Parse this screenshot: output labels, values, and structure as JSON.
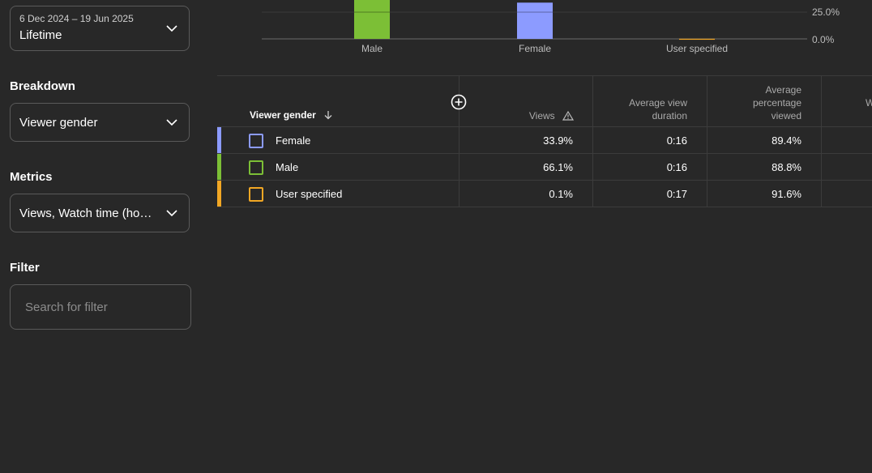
{
  "sidebar": {
    "date_range": {
      "range": "6 Dec 2024 – 19 Jun 2025",
      "label": "Lifetime"
    },
    "breakdown": {
      "title": "Breakdown",
      "value": "Viewer gender"
    },
    "metrics": {
      "title": "Metrics",
      "value": "Views, Watch time (hours)"
    },
    "filter": {
      "title": "Filter",
      "placeholder": "Search for filter"
    }
  },
  "chart_data": {
    "type": "bar",
    "categories": [
      "Male",
      "Female",
      "User specified"
    ],
    "values": [
      66.1,
      33.9,
      0.1
    ],
    "colors": [
      "#7cbf36",
      "#8c9bff",
      "#f2a724"
    ],
    "y_ticks": [
      "25.0%",
      "0.0%"
    ]
  },
  "table": {
    "columns": {
      "gender": "Viewer gender",
      "views": "Views",
      "avg_view_duration_1": "Average view",
      "avg_view_duration_2": "duration",
      "avg_pct_1": "Average",
      "avg_pct_2": "percentage",
      "avg_pct_3": "viewed",
      "next": "W"
    },
    "rows": [
      {
        "name": "Female",
        "views": "33.9%",
        "avg_duration": "0:16",
        "avg_pct": "89.4%",
        "color": "#8c9bff"
      },
      {
        "name": "Male",
        "views": "66.1%",
        "avg_duration": "0:16",
        "avg_pct": "88.8%",
        "color": "#7cbf36"
      },
      {
        "name": "User specified",
        "views": "0.1%",
        "avg_duration": "0:17",
        "avg_pct": "91.6%",
        "color": "#f2a724"
      }
    ]
  },
  "icons": {
    "dropdown": "chevron-down-icon",
    "sort": "arrow-down-icon",
    "warning": "warning-triangle-icon",
    "add": "add-circle-icon"
  }
}
